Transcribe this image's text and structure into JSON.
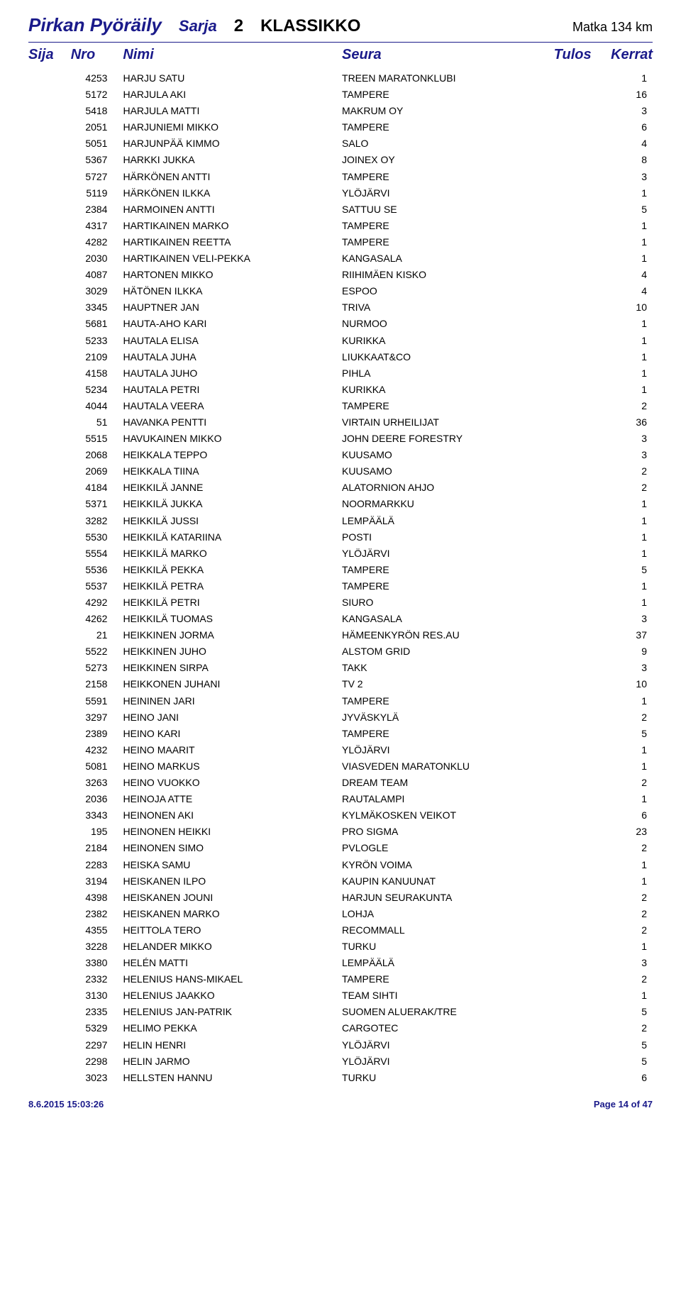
{
  "title": {
    "event": "Pirkan Pyöräily",
    "sarja_label": "Sarja",
    "sarja_num": "2",
    "class_name": "KLASSIKKO",
    "matka": "Matka 134 km"
  },
  "headers": {
    "sija": "Sija",
    "nro": "Nro",
    "nimi": "Nimi",
    "seura": "Seura",
    "tulos": "Tulos",
    "kerrat": "Kerrat"
  },
  "rows": [
    {
      "nro": "4253",
      "nimi": "HARJU SATU",
      "seura": "TREEN MARATONKLUBI",
      "kerrat": "1"
    },
    {
      "nro": "5172",
      "nimi": "HARJULA AKI",
      "seura": "TAMPERE",
      "kerrat": "16"
    },
    {
      "nro": "5418",
      "nimi": "HARJULA MATTI",
      "seura": "MAKRUM OY",
      "kerrat": "3"
    },
    {
      "nro": "2051",
      "nimi": "HARJUNIEMI MIKKO",
      "seura": "TAMPERE",
      "kerrat": "6"
    },
    {
      "nro": "5051",
      "nimi": "HARJUNPÄÄ KIMMO",
      "seura": "SALO",
      "kerrat": "4"
    },
    {
      "nro": "5367",
      "nimi": "HARKKI JUKKA",
      "seura": "JOINEX OY",
      "kerrat": "8"
    },
    {
      "nro": "5727",
      "nimi": "HÄRKÖNEN ANTTI",
      "seura": "TAMPERE",
      "kerrat": "3"
    },
    {
      "nro": "5119",
      "nimi": "HÄRKÖNEN ILKKA",
      "seura": "YLÖJÄRVI",
      "kerrat": "1"
    },
    {
      "nro": "2384",
      "nimi": "HARMOINEN ANTTI",
      "seura": "SATTUU SE",
      "kerrat": "5"
    },
    {
      "nro": "4317",
      "nimi": "HARTIKAINEN MARKO",
      "seura": "TAMPERE",
      "kerrat": "1"
    },
    {
      "nro": "4282",
      "nimi": "HARTIKAINEN REETTA",
      "seura": "TAMPERE",
      "kerrat": "1"
    },
    {
      "nro": "2030",
      "nimi": "HARTIKAINEN VELI-PEKKA",
      "seura": "KANGASALA",
      "kerrat": "1"
    },
    {
      "nro": "4087",
      "nimi": "HARTONEN MIKKO",
      "seura": "RIIHIMÄEN KISKO",
      "kerrat": "4"
    },
    {
      "nro": "3029",
      "nimi": "HÄTÖNEN ILKKA",
      "seura": "ESPOO",
      "kerrat": "4"
    },
    {
      "nro": "3345",
      "nimi": "HAUPTNER JAN",
      "seura": "TRIVA",
      "kerrat": "10"
    },
    {
      "nro": "5681",
      "nimi": "HAUTA-AHO KARI",
      "seura": "NURMOO",
      "kerrat": "1"
    },
    {
      "nro": "5233",
      "nimi": "HAUTALA ELISA",
      "seura": "KURIKKA",
      "kerrat": "1"
    },
    {
      "nro": "2109",
      "nimi": "HAUTALA JUHA",
      "seura": "LIUKKAAT&CO",
      "kerrat": "1"
    },
    {
      "nro": "4158",
      "nimi": "HAUTALA JUHO",
      "seura": "PIHLA",
      "kerrat": "1"
    },
    {
      "nro": "5234",
      "nimi": "HAUTALA PETRI",
      "seura": "KURIKKA",
      "kerrat": "1"
    },
    {
      "nro": "4044",
      "nimi": "HAUTALA VEERA",
      "seura": "TAMPERE",
      "kerrat": "2"
    },
    {
      "nro": "51",
      "nimi": "HAVANKA PENTTI",
      "seura": "VIRTAIN URHEILIJAT",
      "kerrat": "36"
    },
    {
      "nro": "5515",
      "nimi": "HAVUKAINEN MIKKO",
      "seura": "JOHN DEERE FORESTRY",
      "kerrat": "3"
    },
    {
      "nro": "2068",
      "nimi": "HEIKKALA TEPPO",
      "seura": "KUUSAMO",
      "kerrat": "3"
    },
    {
      "nro": "2069",
      "nimi": "HEIKKALA TIINA",
      "seura": "KUUSAMO",
      "kerrat": "2"
    },
    {
      "nro": "4184",
      "nimi": "HEIKKILÄ JANNE",
      "seura": "ALATORNION AHJO",
      "kerrat": "2"
    },
    {
      "nro": "5371",
      "nimi": "HEIKKILÄ JUKKA",
      "seura": "NOORMARKKU",
      "kerrat": "1"
    },
    {
      "nro": "3282",
      "nimi": "HEIKKILÄ JUSSI",
      "seura": "LEMPÄÄLÄ",
      "kerrat": "1"
    },
    {
      "nro": "5530",
      "nimi": "HEIKKILÄ KATARIINA",
      "seura": "POSTI",
      "kerrat": "1"
    },
    {
      "nro": "5554",
      "nimi": "HEIKKILÄ MARKO",
      "seura": "YLÖJÄRVI",
      "kerrat": "1"
    },
    {
      "nro": "5536",
      "nimi": "HEIKKILÄ PEKKA",
      "seura": "TAMPERE",
      "kerrat": "5"
    },
    {
      "nro": "5537",
      "nimi": "HEIKKILÄ PETRA",
      "seura": "TAMPERE",
      "kerrat": "1"
    },
    {
      "nro": "4292",
      "nimi": "HEIKKILÄ PETRI",
      "seura": "SIURO",
      "kerrat": "1"
    },
    {
      "nro": "4262",
      "nimi": "HEIKKILÄ TUOMAS",
      "seura": "KANGASALA",
      "kerrat": "3"
    },
    {
      "nro": "21",
      "nimi": "HEIKKINEN JORMA",
      "seura": "HÄMEENKYRÖN RES.AU",
      "kerrat": "37"
    },
    {
      "nro": "5522",
      "nimi": "HEIKKINEN JUHO",
      "seura": "ALSTOM GRID",
      "kerrat": "9"
    },
    {
      "nro": "5273",
      "nimi": "HEIKKINEN SIRPA",
      "seura": "TAKK",
      "kerrat": "3"
    },
    {
      "nro": "2158",
      "nimi": "HEIKKONEN JUHANI",
      "seura": "TV 2",
      "kerrat": "10"
    },
    {
      "nro": "5591",
      "nimi": "HEININEN JARI",
      "seura": "TAMPERE",
      "kerrat": "1"
    },
    {
      "nro": "3297",
      "nimi": "HEINO JANI",
      "seura": "JYVÄSKYLÄ",
      "kerrat": "2"
    },
    {
      "nro": "2389",
      "nimi": "HEINO KARI",
      "seura": "TAMPERE",
      "kerrat": "5"
    },
    {
      "nro": "4232",
      "nimi": "HEINO MAARIT",
      "seura": "YLÖJÄRVI",
      "kerrat": "1"
    },
    {
      "nro": "5081",
      "nimi": "HEINO MARKUS",
      "seura": "VIASVEDEN MARATONKLU",
      "kerrat": "1"
    },
    {
      "nro": "3263",
      "nimi": "HEINO VUOKKO",
      "seura": "DREAM TEAM",
      "kerrat": "2"
    },
    {
      "nro": "2036",
      "nimi": "HEINOJA ATTE",
      "seura": "RAUTALAMPI",
      "kerrat": "1"
    },
    {
      "nro": "3343",
      "nimi": "HEINONEN AKI",
      "seura": "KYLMÄKOSKEN VEIKOT",
      "kerrat": "6"
    },
    {
      "nro": "195",
      "nimi": "HEINONEN HEIKKI",
      "seura": "PRO SIGMA",
      "kerrat": "23"
    },
    {
      "nro": "2184",
      "nimi": "HEINONEN SIMO",
      "seura": "PVLOGLE",
      "kerrat": "2"
    },
    {
      "nro": "2283",
      "nimi": "HEISKA SAMU",
      "seura": "KYRÖN VOIMA",
      "kerrat": "1"
    },
    {
      "nro": "3194",
      "nimi": "HEISKANEN ILPO",
      "seura": "KAUPIN KANUUNAT",
      "kerrat": "1"
    },
    {
      "nro": "4398",
      "nimi": "HEISKANEN JOUNI",
      "seura": "HARJUN SEURAKUNTA",
      "kerrat": "2"
    },
    {
      "nro": "2382",
      "nimi": "HEISKANEN MARKO",
      "seura": "LOHJA",
      "kerrat": "2"
    },
    {
      "nro": "4355",
      "nimi": "HEITTOLA TERO",
      "seura": "RECOMMALL",
      "kerrat": "2"
    },
    {
      "nro": "3228",
      "nimi": "HELANDER MIKKO",
      "seura": "TURKU",
      "kerrat": "1"
    },
    {
      "nro": "3380",
      "nimi": "HELÉN MATTI",
      "seura": "LEMPÄÄLÄ",
      "kerrat": "3"
    },
    {
      "nro": "2332",
      "nimi": "HELENIUS HANS-MIKAEL",
      "seura": "TAMPERE",
      "kerrat": "2"
    },
    {
      "nro": "3130",
      "nimi": "HELENIUS JAAKKO",
      "seura": "TEAM SIHTI",
      "kerrat": "1"
    },
    {
      "nro": "2335",
      "nimi": "HELENIUS JAN-PATRIK",
      "seura": "SUOMEN ALUERAK/TRE",
      "kerrat": "5"
    },
    {
      "nro": "5329",
      "nimi": "HELIMO PEKKA",
      "seura": "CARGOTEC",
      "kerrat": "2"
    },
    {
      "nro": "2297",
      "nimi": "HELIN HENRI",
      "seura": "YLÖJÄRVI",
      "kerrat": "5"
    },
    {
      "nro": "2298",
      "nimi": "HELIN JARMO",
      "seura": "YLÖJÄRVI",
      "kerrat": "5"
    },
    {
      "nro": "3023",
      "nimi": "HELLSTEN HANNU",
      "seura": "TURKU",
      "kerrat": "6"
    }
  ],
  "footer": {
    "timestamp": "8.6.2015 15:03:26",
    "page": "Page 14 of 47"
  }
}
